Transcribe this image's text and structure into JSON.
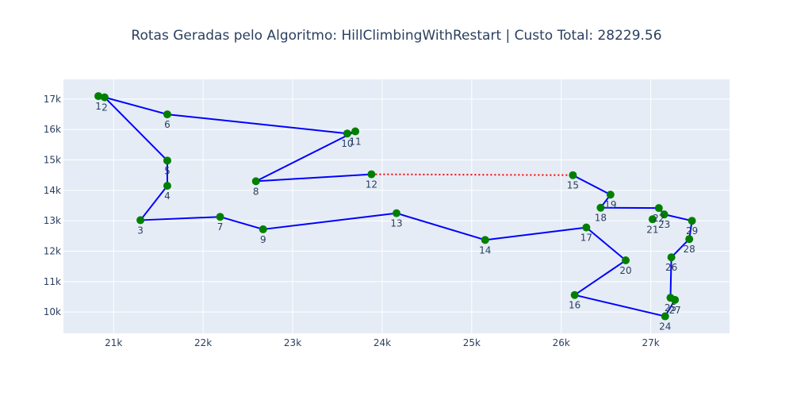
{
  "chart_data": {
    "type": "scatter",
    "title": "Rotas Geradas pelo Algoritmo: HillClimbingWithRestart | Custo Total: 28229.56",
    "xlabel": "",
    "ylabel": "",
    "xlim": [
      20440,
      27880
    ],
    "ylim": [
      9300,
      17650
    ],
    "x_ticks": [
      21000,
      22000,
      23000,
      24000,
      25000,
      26000,
      27000
    ],
    "x_tick_labels": [
      "21k",
      "22k",
      "23k",
      "24k",
      "25k",
      "26k",
      "27k"
    ],
    "y_ticks": [
      10000,
      11000,
      12000,
      13000,
      14000,
      15000,
      16000,
      17000
    ],
    "y_tick_labels": [
      "10k",
      "11k",
      "12k",
      "13k",
      "14k",
      "15k",
      "16k",
      "17k"
    ],
    "grid": true,
    "colors": {
      "plot_bg": "#e5ecf6",
      "grid": "#ffffff",
      "route": "#0000ff",
      "connector": "#ff0000",
      "marker": "#008000",
      "text": "#2a3f5f"
    },
    "points": [
      {
        "label": "1",
        "x": 20830,
        "y": 17100
      },
      {
        "label": "2",
        "x": 20900,
        "y": 17060
      },
      {
        "label": "3",
        "x": 21300,
        "y": 13020
      },
      {
        "label": "4",
        "x": 21600,
        "y": 14150
      },
      {
        "label": "5",
        "x": 21600,
        "y": 14980
      },
      {
        "label": "6",
        "x": 21600,
        "y": 16500
      },
      {
        "label": "7",
        "x": 22190,
        "y": 13130
      },
      {
        "label": "8",
        "x": 22590,
        "y": 14300
      },
      {
        "label": "9",
        "x": 22670,
        "y": 12720
      },
      {
        "label": "10",
        "x": 23610,
        "y": 15870
      },
      {
        "label": "11",
        "x": 23700,
        "y": 15940
      },
      {
        "label": "12",
        "x": 23880,
        "y": 14530
      },
      {
        "label": "13",
        "x": 24160,
        "y": 13250
      },
      {
        "label": "14",
        "x": 25150,
        "y": 12370
      },
      {
        "label": "15",
        "x": 26130,
        "y": 14500
      },
      {
        "label": "16",
        "x": 26150,
        "y": 10560
      },
      {
        "label": "17",
        "x": 26280,
        "y": 12780
      },
      {
        "label": "18",
        "x": 26440,
        "y": 13430
      },
      {
        "label": "19",
        "x": 26550,
        "y": 13860
      },
      {
        "label": "20",
        "x": 26720,
        "y": 11700
      },
      {
        "label": "21",
        "x": 27020,
        "y": 13050
      },
      {
        "label": "22",
        "x": 27090,
        "y": 13420
      },
      {
        "label": "23",
        "x": 27150,
        "y": 13210
      },
      {
        "label": "24",
        "x": 27160,
        "y": 9860
      },
      {
        "label": "25",
        "x": 27220,
        "y": 10470
      },
      {
        "label": "26",
        "x": 27230,
        "y": 11800
      },
      {
        "label": "27",
        "x": 27270,
        "y": 10400
      },
      {
        "label": "28",
        "x": 27430,
        "y": 12400
      },
      {
        "label": "29",
        "x": 27460,
        "y": 13000
      }
    ],
    "routes": [
      {
        "style": "solid",
        "path": [
          "1",
          "2",
          "6",
          "10",
          "11",
          "8",
          "12"
        ]
      },
      {
        "style": "solid",
        "path": [
          "2",
          "5",
          "4",
          "3",
          "7",
          "9",
          "13",
          "14",
          "17",
          "20",
          "16",
          "24",
          "27",
          "25",
          "26",
          "28",
          "29",
          "23",
          "22",
          "18",
          "19",
          "15"
        ]
      },
      {
        "style": "dotted",
        "path": [
          "12",
          "15"
        ]
      }
    ]
  }
}
